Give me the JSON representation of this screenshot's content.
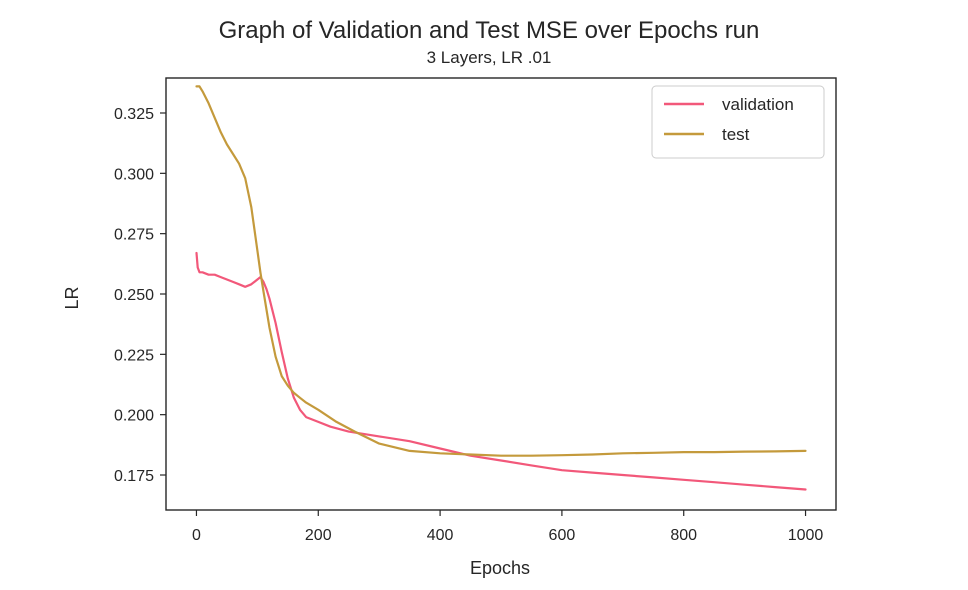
{
  "chart_data": {
    "type": "line",
    "title": "Graph of Validation and Test MSE over Epochs run",
    "subtitle": "3 Layers, LR .01",
    "xlabel": "Epochs",
    "ylabel": "LR",
    "xlim": [
      -50,
      1050
    ],
    "ylim": [
      0.1605,
      0.3395
    ],
    "xticks": [
      0,
      200,
      400,
      600,
      800,
      1000
    ],
    "xtick_labels": [
      "0",
      "200",
      "400",
      "600",
      "800",
      "1000"
    ],
    "yticks": [
      0.175,
      0.2,
      0.225,
      0.25,
      0.275,
      0.3,
      0.325
    ],
    "ytick_labels": [
      "0.175",
      "0.200",
      "0.225",
      "0.250",
      "0.275",
      "0.300",
      "0.325"
    ],
    "grid": false,
    "legend_position": "top-right",
    "series": [
      {
        "name": "validation",
        "color": "#f2587a",
        "x": [
          0,
          2,
          5,
          10,
          20,
          30,
          40,
          50,
          60,
          70,
          80,
          90,
          100,
          105,
          110,
          115,
          120,
          130,
          140,
          150,
          160,
          170,
          180,
          190,
          200,
          220,
          250,
          300,
          350,
          400,
          450,
          500,
          550,
          600,
          650,
          700,
          750,
          800,
          850,
          900,
          950,
          1000
        ],
        "y": [
          0.267,
          0.261,
          0.259,
          0.259,
          0.258,
          0.258,
          0.257,
          0.256,
          0.255,
          0.254,
          0.253,
          0.254,
          0.256,
          0.257,
          0.255,
          0.252,
          0.248,
          0.238,
          0.226,
          0.215,
          0.207,
          0.202,
          0.199,
          0.198,
          0.197,
          0.195,
          0.193,
          0.191,
          0.189,
          0.186,
          0.183,
          0.181,
          0.179,
          0.177,
          0.176,
          0.175,
          0.174,
          0.173,
          0.172,
          0.171,
          0.17,
          0.169
        ]
      },
      {
        "name": "test",
        "color": "#c49a3c",
        "x": [
          0,
          5,
          10,
          20,
          30,
          40,
          50,
          60,
          70,
          80,
          90,
          100,
          105,
          110,
          120,
          130,
          140,
          150,
          160,
          170,
          180,
          200,
          230,
          260,
          300,
          350,
          400,
          450,
          500,
          550,
          600,
          650,
          700,
          750,
          800,
          850,
          900,
          950,
          1000
        ],
        "y": [
          0.336,
          0.336,
          0.334,
          0.329,
          0.323,
          0.317,
          0.312,
          0.308,
          0.304,
          0.298,
          0.286,
          0.268,
          0.259,
          0.251,
          0.236,
          0.224,
          0.216,
          0.212,
          0.209,
          0.207,
          0.205,
          0.202,
          0.197,
          0.193,
          0.188,
          0.185,
          0.184,
          0.1835,
          0.183,
          0.183,
          0.1832,
          0.1835,
          0.184,
          0.1842,
          0.1845,
          0.1845,
          0.1847,
          0.1848,
          0.185
        ]
      }
    ]
  }
}
